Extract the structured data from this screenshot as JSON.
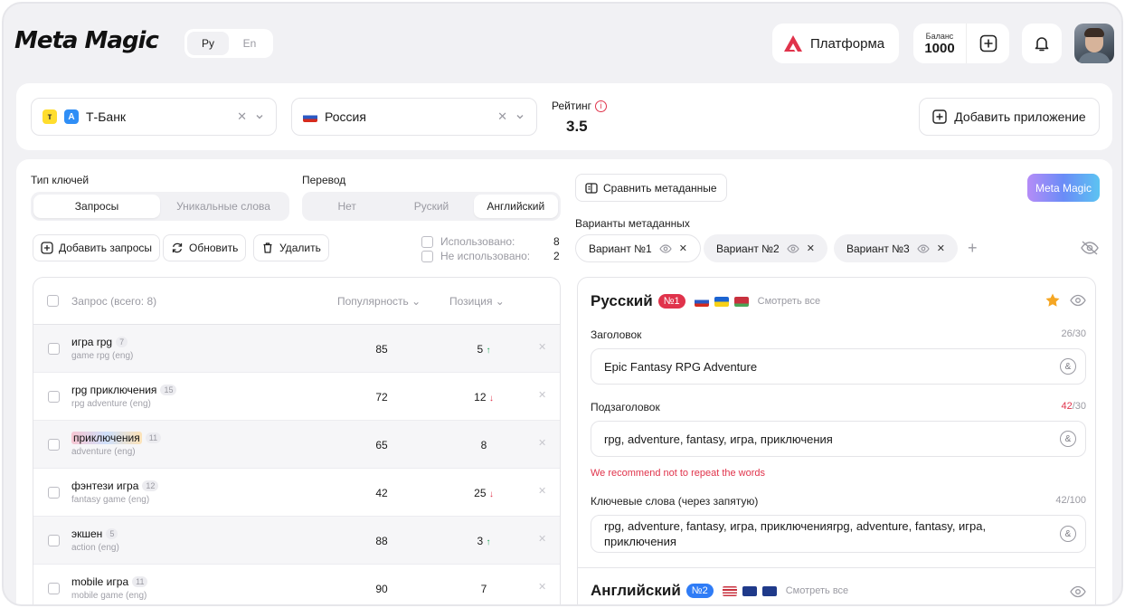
{
  "header": {
    "logo": "Meta Magic",
    "lang_options": [
      "Ру",
      "En"
    ],
    "platform_label": "Платформа",
    "balance_label": "Баланс",
    "balance_value": "1000"
  },
  "top": {
    "app_name": "Т-Банк",
    "country": "Россия",
    "rating_label": "Рейтинг",
    "rating_value": "3.5",
    "add_app_label": "Добавить приложение"
  },
  "left": {
    "key_type_label": "Тип ключей",
    "key_type_options": [
      "Запросы",
      "Уникальные слова"
    ],
    "translation_label": "Перевод",
    "translation_options": [
      "Нет",
      "Руский",
      "Английский"
    ],
    "add_queries_label": "Добавить запросы",
    "refresh_label": "Обновить",
    "delete_label": "Удалить",
    "used_label": "Использовано:",
    "used_count": "8",
    "unused_label": "Не использовано:",
    "unused_count": "2",
    "table": {
      "col_query": "Запрос (всего: 8)",
      "col_popularity": "Популярность",
      "col_position": "Позиция",
      "rows": [
        {
          "query": "игра rpg",
          "tag": "7",
          "sub": "game rpg (eng)",
          "popularity": "85",
          "position": "5",
          "trend": "↑"
        },
        {
          "query": "rpg приключения",
          "tag": "15",
          "sub": "rpg adventure (eng)",
          "popularity": "72",
          "position": "12",
          "trend": "↓"
        },
        {
          "query": "приключения",
          "tag": "11",
          "sub": "adventure (eng)",
          "popularity": "65",
          "position": "8",
          "trend": ""
        },
        {
          "query": "фэнтези игра",
          "tag": "12",
          "sub": "fantasy game (eng)",
          "popularity": "42",
          "position": "25",
          "trend": "↓"
        },
        {
          "query": "экшен",
          "tag": "5",
          "sub": "action (eng)",
          "popularity": "88",
          "position": "3",
          "trend": "↑"
        },
        {
          "query": "mobile игра",
          "tag": "11",
          "sub": "mobile game (eng)",
          "popularity": "90",
          "position": "7",
          "trend": ""
        }
      ]
    }
  },
  "right": {
    "compare_label": "Сравнить метаданные",
    "meta_magic_label": "Meta Magic",
    "variants_label": "Варианты метаданных",
    "variants": [
      "Вариант №1",
      "Вариант №2",
      "Вариант №3"
    ],
    "ru_card": {
      "title": "Русский",
      "badge": "№1",
      "see_all": "Смотреть все",
      "title_label": "Заголовок",
      "title_count": "26/30",
      "title_value": "Epic Fantasy RPG Adventure",
      "subtitle_label": "Подзаголовок",
      "subtitle_count_over": "42",
      "subtitle_count_max": "/30",
      "subtitle_value": "rpg, adventure, fantasy, игра, приключения",
      "warning": "We recommend not to repeat the words",
      "keywords_label": "Ключевые слова (через запятую)",
      "keywords_count": "42/100",
      "keywords_value": "rpg, adventure, fantasy, игра, приключенияrpg, adventure, fantasy, игра, приключения"
    },
    "en_card": {
      "title": "Английский",
      "badge": "№2",
      "see_all": "Смотреть все"
    }
  },
  "colors": {
    "accent_red": "#e0334b",
    "badge_blue": "#2f7cf6",
    "up_green": "#22a559"
  }
}
